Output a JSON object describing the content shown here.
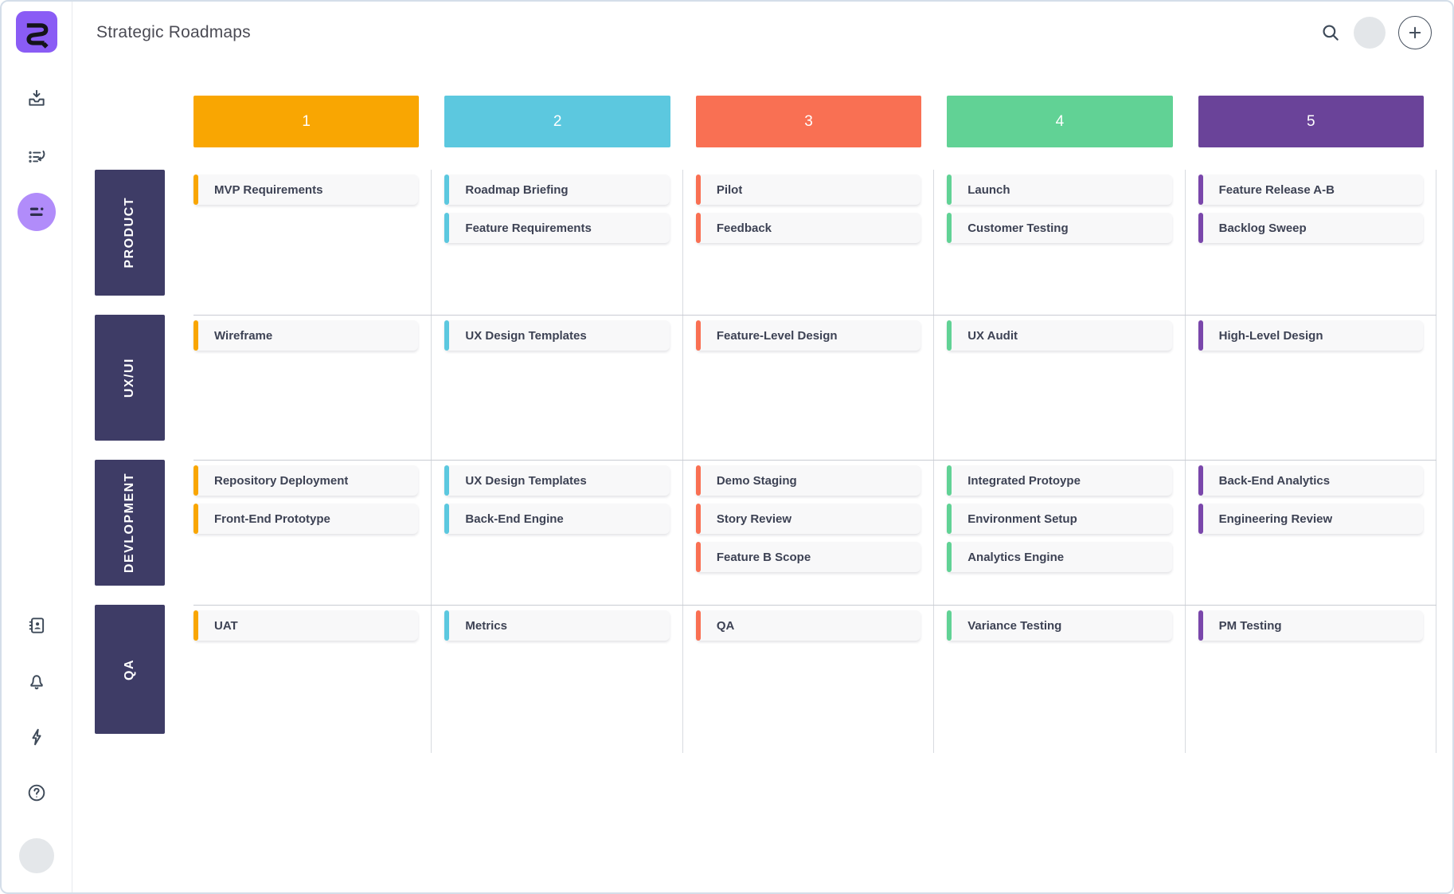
{
  "header": {
    "title": "Strategic Roadmaps"
  },
  "sidebar": {
    "top_icons": [
      "app-logo",
      "import-tray-icon",
      "activity-list-icon",
      "roadmap-fields-icon"
    ],
    "bottom_icons": [
      "contacts-icon",
      "notifications-bell-icon",
      "quick-actions-bolt-icon",
      "help-icon",
      "user-avatar"
    ],
    "active_item": "roadmap-fields-icon"
  },
  "colors": {
    "brand_purple": "#8A5CF5",
    "active_item_bg": "#B18CFA",
    "row_label_bg": "#3E3C66",
    "card_bg": "#F8F8F9"
  },
  "board": {
    "columns": [
      {
        "number": "1",
        "color": "#F9A602",
        "accent": "#F9A602"
      },
      {
        "number": "2",
        "color": "#5CC8DF",
        "accent": "#5CC8DF"
      },
      {
        "number": "3",
        "color": "#F97053",
        "accent": "#F97053"
      },
      {
        "number": "4",
        "color": "#61D295",
        "accent": "#61D295"
      },
      {
        "number": "5",
        "color": "#6A4399",
        "accent": "#7A47AB"
      }
    ],
    "rows": [
      {
        "label": "PRODUCT",
        "cells": [
          [
            "MVP Requirements"
          ],
          [
            "Roadmap Briefing",
            "Feature Requirements"
          ],
          [
            "Pilot",
            "Feedback"
          ],
          [
            "Launch",
            "Customer Testing"
          ],
          [
            "Feature Release A-B",
            "Backlog Sweep"
          ]
        ]
      },
      {
        "label": "UX/UI",
        "cells": [
          [
            "Wireframe"
          ],
          [
            "UX Design Templates"
          ],
          [
            "Feature-Level Design"
          ],
          [
            "UX Audit"
          ],
          [
            "High-Level Design"
          ]
        ]
      },
      {
        "label": "DEVLOPMENT",
        "cells": [
          [
            "Repository Deployment",
            "Front-End Prototype"
          ],
          [
            "UX Design Templates",
            "Back-End Engine"
          ],
          [
            "Demo Staging",
            "Story Review",
            "Feature B Scope"
          ],
          [
            "Integrated Protoype",
            "Environment Setup",
            "Analytics Engine"
          ],
          [
            "Back-End Analytics",
            "Engineering Review"
          ]
        ]
      },
      {
        "label": "QA",
        "cells": [
          [
            "UAT"
          ],
          [
            "Metrics"
          ],
          [
            "QA"
          ],
          [
            "Variance Testing"
          ],
          [
            "PM Testing"
          ]
        ]
      }
    ]
  }
}
